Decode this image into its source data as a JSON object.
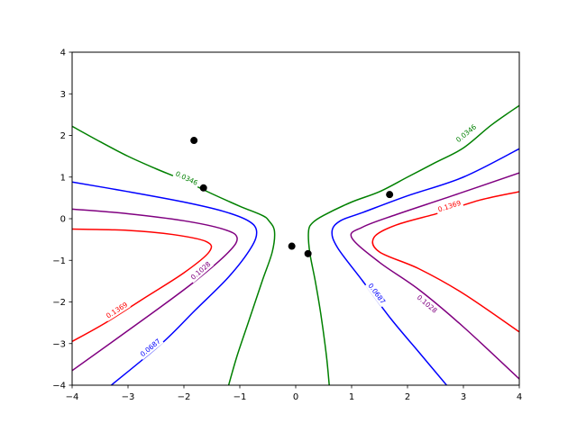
{
  "chart_data": {
    "type": "contour",
    "title": "",
    "xlabel": "",
    "ylabel": "",
    "xlim": [
      -4,
      4
    ],
    "ylim": [
      -4,
      4
    ],
    "x_ticks": [
      -4,
      -3,
      -2,
      -1,
      0,
      1,
      2,
      3,
      4
    ],
    "y_ticks": [
      -4,
      -3,
      -2,
      -1,
      0,
      1,
      2,
      3,
      4
    ],
    "x_tick_labels": [
      "−4",
      "−3",
      "−2",
      "−1",
      "0",
      "1",
      "2",
      "3",
      "4"
    ],
    "y_tick_labels": [
      "−4",
      "−3",
      "−2",
      "−1",
      "0",
      "1",
      "2",
      "3",
      "4"
    ],
    "grid": false,
    "levels": [
      {
        "label": "0.0346",
        "color": "#008000",
        "lines": [
          [
            [
              -4,
              2.22
            ],
            [
              -3.5,
              1.85
            ],
            [
              -3,
              1.5
            ],
            [
              -2.5,
              1.2
            ],
            [
              -2,
              0.92
            ],
            [
              -1.5,
              0.6
            ],
            [
              -1,
              0.3
            ],
            [
              -0.6,
              0.08
            ],
            [
              -0.48,
              -0.05
            ],
            [
              -0.38,
              -0.3
            ],
            [
              -0.42,
              -0.8
            ],
            [
              -0.6,
              -1.5
            ],
            [
              -0.85,
              -2.5
            ],
            [
              -1.05,
              -3.3
            ],
            [
              -1.2,
              -4
            ]
          ],
          [
            [
              0.6,
              -4
            ],
            [
              0.55,
              -3.3
            ],
            [
              0.45,
              -2.3
            ],
            [
              0.35,
              -1.5
            ],
            [
              0.25,
              -0.8
            ],
            [
              0.23,
              -0.3
            ],
            [
              0.3,
              -0.1
            ],
            [
              0.5,
              0.08
            ],
            [
              1,
              0.4
            ],
            [
              1.5,
              0.65
            ],
            [
              2,
              1.0
            ],
            [
              2.5,
              1.35
            ],
            [
              3,
              1.7
            ],
            [
              3.5,
              2.25
            ],
            [
              4,
              2.72
            ]
          ]
        ],
        "label_positions": [
          [
            -1.95,
            0.97
          ],
          [
            3.05,
            2.05
          ]
        ]
      },
      {
        "label": "0.0687",
        "color": "#0000ff",
        "lines": [
          [
            [
              -4,
              0.88
            ],
            [
              -3,
              0.65
            ],
            [
              -2,
              0.4
            ],
            [
              -1.3,
              0.18
            ],
            [
              -0.85,
              -0.05
            ],
            [
              -0.7,
              -0.3
            ],
            [
              -0.8,
              -0.7
            ],
            [
              -1.2,
              -1.4
            ],
            [
              -1.8,
              -2.2
            ],
            [
              -2.4,
              -3
            ],
            [
              -3.3,
              -4
            ]
          ],
          [
            [
              2.7,
              -4
            ],
            [
              2.2,
              -3.2
            ],
            [
              1.7,
              -2.4
            ],
            [
              1.2,
              -1.5
            ],
            [
              0.75,
              -0.7
            ],
            [
              0.65,
              -0.3
            ],
            [
              0.8,
              -0.05
            ],
            [
              1.2,
              0.15
            ],
            [
              2,
              0.55
            ],
            [
              3,
              1.0
            ],
            [
              4,
              1.68
            ]
          ]
        ],
        "label_positions": [
          [
            -2.6,
            -3.1
          ],
          [
            1.45,
            -1.8
          ]
        ]
      },
      {
        "label": "0.1028",
        "color": "#800080",
        "lines": [
          [
            [
              -4,
              0.23
            ],
            [
              -3,
              0.12
            ],
            [
              -2,
              -0.05
            ],
            [
              -1.3,
              -0.25
            ],
            [
              -1.05,
              -0.45
            ],
            [
              -1.2,
              -0.8
            ],
            [
              -1.8,
              -1.5
            ],
            [
              -2.6,
              -2.3
            ],
            [
              -4,
              -3.65
            ]
          ],
          [
            [
              4,
              -3.85
            ],
            [
              3,
              -2.6
            ],
            [
              2.2,
              -1.7
            ],
            [
              1.5,
              -1.05
            ],
            [
              1.0,
              -0.45
            ],
            [
              1.2,
              -0.2
            ],
            [
              1.8,
              0.1
            ],
            [
              2.8,
              0.55
            ],
            [
              4,
              1.1
            ]
          ]
        ],
        "label_positions": [
          [
            -1.7,
            -1.25
          ],
          [
            2.35,
            -2.05
          ]
        ]
      },
      {
        "label": "0.1369",
        "color": "#ff0000",
        "lines": [
          [
            [
              -4,
              -0.25
            ],
            [
              -3,
              -0.28
            ],
            [
              -2.2,
              -0.38
            ],
            [
              -1.6,
              -0.55
            ],
            [
              -1.55,
              -0.8
            ],
            [
              -2.0,
              -1.3
            ],
            [
              -2.7,
              -1.9
            ],
            [
              -3.4,
              -2.5
            ],
            [
              -4,
              -2.95
            ]
          ],
          [
            [
              4,
              -2.72
            ],
            [
              3,
              -1.8
            ],
            [
              2.2,
              -1.2
            ],
            [
              1.5,
              -0.8
            ],
            [
              1.4,
              -0.45
            ],
            [
              1.8,
              -0.15
            ],
            [
              2.6,
              0.15
            ],
            [
              3.3,
              0.45
            ],
            [
              4,
              0.65
            ]
          ]
        ],
        "label_positions": [
          [
            -3.2,
            -2.2
          ],
          [
            2.75,
            0.3
          ]
        ]
      }
    ],
    "points": [
      {
        "x": -1.82,
        "y": 1.88
      },
      {
        "x": -1.65,
        "y": 0.74
      },
      {
        "x": -0.07,
        "y": -0.66
      },
      {
        "x": 0.22,
        "y": -0.84
      },
      {
        "x": 1.68,
        "y": 0.58
      }
    ],
    "point_color": "#000000"
  }
}
